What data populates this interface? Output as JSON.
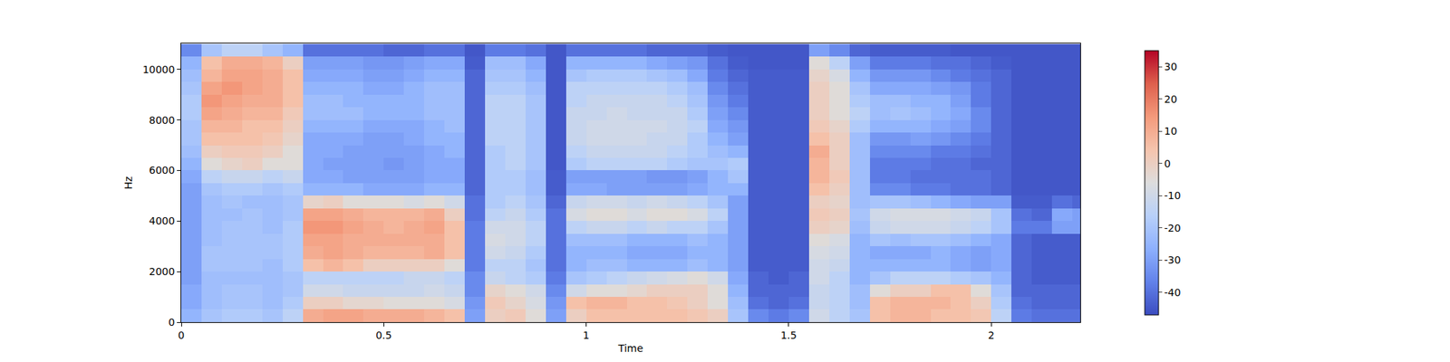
{
  "chart_data": {
    "type": "heatmap",
    "x_label": "Time",
    "y_label": "Hz",
    "x": [
      0.025,
      0.075,
      0.125,
      0.175,
      0.225,
      0.275,
      0.325,
      0.375,
      0.425,
      0.475,
      0.525,
      0.575,
      0.625,
      0.675,
      0.725,
      0.775,
      0.825,
      0.875,
      0.925,
      0.975,
      1.025,
      1.075,
      1.125,
      1.175,
      1.225,
      1.275,
      1.325,
      1.375,
      1.425,
      1.475,
      1.525,
      1.575,
      1.625,
      1.675,
      1.725,
      1.775,
      1.825,
      1.875,
      1.925,
      1.975,
      2.025,
      2.075,
      2.125,
      2.175,
      2.225
    ],
    "y": [
      250,
      750,
      1250,
      1750,
      2250,
      2750,
      3250,
      3750,
      4250,
      4750,
      5250,
      5750,
      6250,
      6750,
      7250,
      7750,
      8250,
      8750,
      9250,
      9750,
      10250,
      10750
    ],
    "z": [
      [
        -25,
        -20,
        -18,
        -18,
        -20,
        -15,
        10,
        12,
        12,
        10,
        10,
        10,
        8,
        5,
        -30,
        0,
        2,
        -5,
        -30,
        0,
        5,
        5,
        5,
        5,
        5,
        3,
        0,
        -20,
        -35,
        -38,
        -35,
        -10,
        -15,
        -20,
        5,
        8,
        8,
        5,
        5,
        3,
        -15,
        -38,
        -40,
        -40,
        -40
      ],
      [
        -28,
        -22,
        -20,
        -20,
        -22,
        -18,
        0,
        0,
        -3,
        -3,
        -5,
        -5,
        -5,
        -8,
        -32,
        2,
        -2,
        -8,
        -32,
        5,
        8,
        8,
        5,
        5,
        3,
        0,
        -5,
        -22,
        -40,
        -42,
        -40,
        -12,
        -15,
        -22,
        5,
        8,
        8,
        8,
        5,
        0,
        -18,
        -40,
        -42,
        -42,
        -42
      ],
      [
        -28,
        -22,
        -20,
        -20,
        -22,
        -20,
        -10,
        -10,
        -12,
        -12,
        -12,
        -12,
        -10,
        -12,
        -35,
        -2,
        -5,
        -10,
        -35,
        -10,
        -5,
        -5,
        -3,
        0,
        0,
        0,
        -5,
        -25,
        -42,
        -42,
        -42,
        -12,
        -15,
        -22,
        -5,
        0,
        0,
        5,
        5,
        -5,
        -20,
        -42,
        -42,
        -42,
        -42
      ],
      [
        -30,
        -22,
        -22,
        -22,
        -22,
        -20,
        -15,
        -15,
        -15,
        -15,
        -15,
        -12,
        -12,
        -15,
        -35,
        -12,
        -15,
        -18,
        -38,
        -20,
        -18,
        -15,
        -12,
        -10,
        -8,
        -5,
        -10,
        -28,
        -42,
        -44,
        -42,
        -10,
        -15,
        -25,
        -20,
        -15,
        -15,
        -15,
        -18,
        -20,
        -25,
        -42,
        -44,
        -44,
        -44
      ],
      [
        -30,
        -20,
        -20,
        -20,
        -22,
        -18,
        5,
        8,
        5,
        0,
        0,
        0,
        0,
        -5,
        -38,
        -15,
        -15,
        -20,
        -40,
        -25,
        -22,
        -22,
        -25,
        -25,
        -25,
        -22,
        -25,
        -30,
        -44,
        -44,
        -44,
        -10,
        -12,
        -25,
        -25,
        -25,
        -25,
        -25,
        -28,
        -30,
        -28,
        -42,
        -44,
        -44,
        -44
      ],
      [
        -30,
        -20,
        -20,
        -20,
        -20,
        -18,
        10,
        12,
        10,
        8,
        8,
        8,
        10,
        5,
        -38,
        -10,
        -12,
        -18,
        -40,
        -25,
        -25,
        -25,
        -28,
        -28,
        -28,
        -25,
        -25,
        -30,
        -44,
        -44,
        -44,
        -8,
        -10,
        -25,
        -28,
        -28,
        -28,
        -25,
        -28,
        -30,
        -28,
        -42,
        -44,
        -44,
        -44
      ],
      [
        -30,
        -22,
        -20,
        -20,
        -20,
        -18,
        12,
        12,
        10,
        10,
        10,
        10,
        10,
        5,
        -38,
        -8,
        -10,
        -15,
        -40,
        -22,
        -22,
        -22,
        -25,
        -25,
        -25,
        -22,
        -25,
        -30,
        -44,
        -44,
        -44,
        -5,
        -8,
        -25,
        -20,
        -22,
        -20,
        -20,
        -22,
        -25,
        -28,
        -42,
        -44,
        -44,
        -44
      ],
      [
        -30,
        -22,
        -20,
        -20,
        -22,
        -18,
        15,
        15,
        12,
        10,
        8,
        10,
        12,
        5,
        -38,
        -10,
        -10,
        -15,
        -40,
        -15,
        -12,
        -12,
        -15,
        -12,
        -15,
        -15,
        -20,
        -30,
        -44,
        -44,
        -44,
        0,
        -2,
        -22,
        -12,
        -10,
        -10,
        -10,
        -12,
        -15,
        -20,
        -38,
        -38,
        -30,
        -30
      ],
      [
        -30,
        -22,
        -22,
        -20,
        -22,
        -20,
        12,
        12,
        10,
        8,
        8,
        8,
        10,
        0,
        -40,
        -15,
        -12,
        -18,
        -40,
        -8,
        -5,
        -5,
        -8,
        -5,
        -5,
        -8,
        -15,
        -30,
        -44,
        -44,
        -44,
        2,
        0,
        -20,
        -10,
        -8,
        -8,
        -8,
        -10,
        -12,
        -20,
        -40,
        -42,
        -28,
        -30
      ],
      [
        -30,
        -22,
        -20,
        -22,
        -22,
        -20,
        -2,
        0,
        -5,
        -5,
        -5,
        -8,
        -5,
        -10,
        -40,
        -18,
        -15,
        -20,
        -42,
        -12,
        -10,
        -10,
        -12,
        -10,
        -12,
        -15,
        -20,
        -30,
        -44,
        -44,
        -44,
        0,
        -2,
        -22,
        -20,
        -20,
        -22,
        -25,
        -28,
        -30,
        -30,
        -44,
        -44,
        -40,
        -42
      ],
      [
        -30,
        -20,
        -18,
        -18,
        -20,
        -18,
        -25,
        -25,
        -25,
        -28,
        -28,
        -28,
        -25,
        -25,
        -42,
        -18,
        -18,
        -22,
        -44,
        -28,
        -28,
        -30,
        -30,
        -30,
        -30,
        -28,
        -25,
        -25,
        -44,
        -44,
        -44,
        5,
        0,
        -22,
        -35,
        -35,
        -38,
        -38,
        -40,
        -40,
        -42,
        -45,
        -45,
        -45,
        -45
      ],
      [
        -28,
        -15,
        -12,
        -12,
        -15,
        -12,
        -28,
        -28,
        -30,
        -30,
        -30,
        -30,
        -28,
        -28,
        -42,
        -18,
        -18,
        -22,
        -44,
        -30,
        -30,
        -30,
        -30,
        -32,
        -32,
        -30,
        -25,
        -20,
        -44,
        -44,
        -44,
        8,
        2,
        -22,
        -38,
        -38,
        -40,
        -40,
        -40,
        -40,
        -42,
        -45,
        -45,
        -45,
        -45
      ],
      [
        -25,
        -5,
        -2,
        0,
        -5,
        -5,
        -28,
        -30,
        -30,
        -30,
        -32,
        -30,
        -28,
        -28,
        -42,
        -18,
        -15,
        -20,
        -45,
        -18,
        -15,
        -15,
        -15,
        -15,
        -18,
        -20,
        -20,
        -18,
        -44,
        -44,
        -44,
        8,
        0,
        -22,
        -38,
        -38,
        -38,
        -40,
        -40,
        -42,
        -42,
        -45,
        -45,
        -45,
        -45
      ],
      [
        -22,
        0,
        2,
        2,
        0,
        -5,
        -28,
        -28,
        -30,
        -30,
        -30,
        -30,
        -28,
        -25,
        -42,
        -18,
        -15,
        -20,
        -45,
        -15,
        -12,
        -12,
        -12,
        -12,
        -15,
        -18,
        -22,
        -25,
        -44,
        -44,
        -44,
        10,
        0,
        -22,
        -35,
        -35,
        -35,
        -38,
        -38,
        -40,
        -42,
        -45,
        -45,
        -45,
        -45
      ],
      [
        -20,
        5,
        5,
        5,
        3,
        -2,
        -28,
        -28,
        -28,
        -30,
        -30,
        -28,
        -25,
        -25,
        -42,
        -15,
        -15,
        -20,
        -45,
        -12,
        -10,
        -10,
        -10,
        -12,
        -12,
        -18,
        -25,
        -30,
        -44,
        -44,
        -44,
        5,
        0,
        -22,
        -32,
        -32,
        -30,
        -32,
        -35,
        -38,
        -42,
        -45,
        -45,
        -45,
        -45
      ],
      [
        -20,
        8,
        8,
        5,
        5,
        0,
        -25,
        -25,
        -25,
        -28,
        -28,
        -28,
        -25,
        -22,
        -42,
        -15,
        -15,
        -20,
        -45,
        -12,
        -10,
        -10,
        -10,
        -10,
        -12,
        -15,
        -28,
        -32,
        -44,
        -44,
        -44,
        2,
        -2,
        -18,
        -25,
        -25,
        -25,
        -28,
        -30,
        -35,
        -42,
        -45,
        -45,
        -45,
        -45
      ],
      [
        -18,
        12,
        10,
        8,
        8,
        2,
        -22,
        -22,
        -22,
        -25,
        -25,
        -25,
        -22,
        -22,
        -42,
        -15,
        -15,
        -20,
        -45,
        -12,
        -12,
        -10,
        -12,
        -12,
        -12,
        -18,
        -30,
        -35,
        -44,
        -44,
        -44,
        0,
        -5,
        -15,
        -22,
        -20,
        -22,
        -25,
        -28,
        -35,
        -42,
        -45,
        -45,
        -45,
        -45
      ],
      [
        -18,
        15,
        12,
        10,
        10,
        5,
        -22,
        -22,
        -25,
        -25,
        -25,
        -25,
        -22,
        -22,
        -42,
        -15,
        -15,
        -20,
        -45,
        -15,
        -12,
        -12,
        -12,
        -12,
        -15,
        -20,
        -32,
        -38,
        -44,
        -44,
        -44,
        0,
        -5,
        -18,
        -22,
        -22,
        -25,
        -25,
        -30,
        -38,
        -42,
        -45,
        -45,
        -45,
        -45
      ],
      [
        -20,
        12,
        15,
        12,
        10,
        5,
        -25,
        -25,
        -25,
        -28,
        -28,
        -25,
        -22,
        -22,
        -42,
        -18,
        -18,
        -22,
        -45,
        -15,
        -15,
        -15,
        -15,
        -15,
        -18,
        -22,
        -35,
        -40,
        -44,
        -44,
        -44,
        0,
        -5,
        -20,
        -28,
        -28,
        -28,
        -30,
        -32,
        -38,
        -42,
        -45,
        -45,
        -45,
        -45
      ],
      [
        -22,
        8,
        12,
        12,
        10,
        5,
        -28,
        -28,
        -28,
        -30,
        -30,
        -28,
        -25,
        -25,
        -42,
        -20,
        -20,
        -25,
        -45,
        -20,
        -18,
        -18,
        -18,
        -20,
        -22,
        -28,
        -38,
        -42,
        -44,
        -44,
        -44,
        -2,
        -8,
        -25,
        -32,
        -32,
        -32,
        -35,
        -38,
        -40,
        -42,
        -45,
        -45,
        -45,
        -45
      ],
      [
        -25,
        5,
        10,
        10,
        8,
        0,
        -30,
        -30,
        -30,
        -32,
        -32,
        -30,
        -28,
        -28,
        -44,
        -22,
        -22,
        -28,
        -45,
        -25,
        -25,
        -25,
        -25,
        -28,
        -30,
        -32,
        -40,
        -44,
        -45,
        -45,
        -45,
        -5,
        -15,
        -30,
        -38,
        -38,
        -38,
        -40,
        -40,
        -42,
        -44,
        -45,
        -45,
        -45,
        -45
      ],
      [
        -35,
        -20,
        -15,
        -15,
        -20,
        -25,
        -40,
        -40,
        -40,
        -40,
        -42,
        -42,
        -40,
        -40,
        -45,
        -38,
        -38,
        -40,
        -45,
        -40,
        -40,
        -40,
        -40,
        -42,
        -42,
        -42,
        -44,
        -45,
        -45,
        -45,
        -45,
        -30,
        -35,
        -42,
        -44,
        -44,
        -44,
        -44,
        -45,
        -45,
        -45,
        -45,
        -45,
        -45,
        -45
      ]
    ],
    "xlim": [
      0,
      2.22
    ],
    "ylim": [
      0,
      11025
    ],
    "xticks": [
      0,
      0.5,
      1,
      1.5,
      2
    ],
    "yticks": [
      0,
      2000,
      4000,
      6000,
      8000,
      10000
    ],
    "zlim": [
      -47,
      35
    ],
    "zticks": [
      -40,
      -30,
      -20,
      -10,
      0,
      10,
      20,
      30
    ]
  }
}
